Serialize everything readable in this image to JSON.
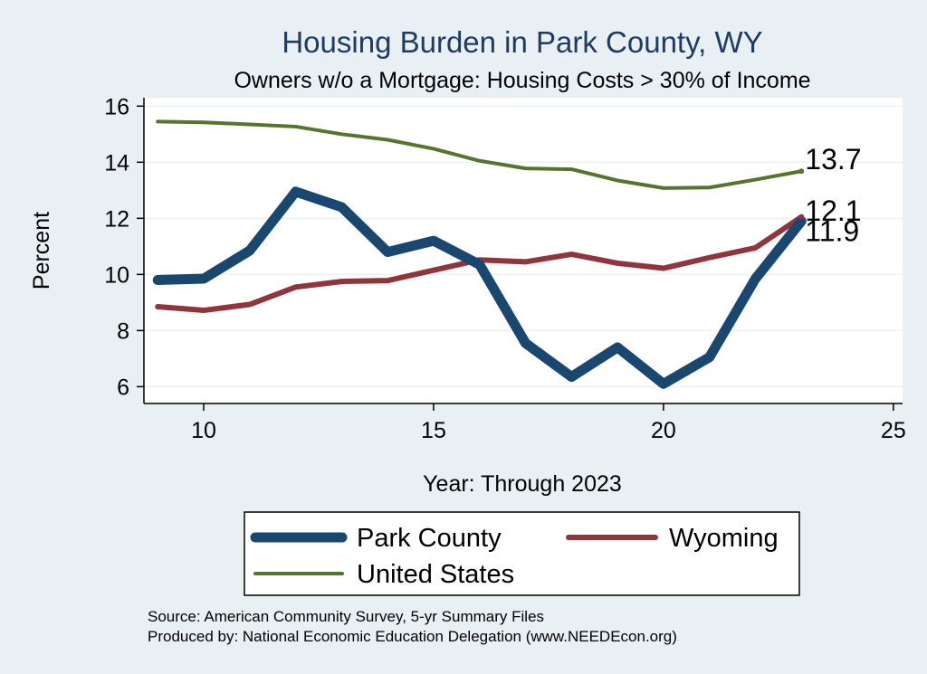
{
  "chart_data": {
    "type": "line",
    "title": "Housing Burden in Park County, WY",
    "subtitle": "Owners w/o a Mortgage: Housing Costs > 30% of Income",
    "xlabel": "Year: Through 2023",
    "ylabel": "Percent",
    "xlim": [
      8.7,
      25.2
    ],
    "ylim": [
      5.4,
      16.3
    ],
    "xticks": [
      10,
      15,
      20,
      25
    ],
    "yticks": [
      6,
      8,
      10,
      12,
      14,
      16
    ],
    "grid": true,
    "x": [
      9,
      10,
      11,
      12,
      13,
      14,
      15,
      16,
      17,
      18,
      19,
      20,
      21,
      22,
      23
    ],
    "series": [
      {
        "name": "Park County",
        "color": "#1a476f",
        "values": [
          9.8,
          9.85,
          10.85,
          12.95,
          12.4,
          10.8,
          11.2,
          10.35,
          7.55,
          6.35,
          7.4,
          6.1,
          7.05,
          9.85,
          11.9
        ],
        "end_label": "11.9"
      },
      {
        "name": "Wyoming",
        "color": "#90353b",
        "values": [
          8.85,
          8.72,
          8.93,
          9.55,
          9.75,
          9.78,
          10.15,
          10.52,
          10.45,
          10.72,
          10.4,
          10.22,
          10.6,
          10.95,
          12.05
        ],
        "end_label": "12.1"
      },
      {
        "name": "United States",
        "color": "#55752f",
        "values": [
          15.45,
          15.42,
          15.35,
          15.27,
          15.0,
          14.8,
          14.48,
          14.05,
          13.78,
          13.75,
          13.35,
          13.08,
          13.1,
          13.38,
          13.68
        ],
        "end_label": "13.7"
      }
    ],
    "legend": {
      "position": "bottom",
      "items": [
        {
          "label": "Park County",
          "color": "#1a476f"
        },
        {
          "label": "Wyoming",
          "color": "#90353b"
        },
        {
          "label": "United States",
          "color": "#55752f"
        }
      ]
    },
    "note": [
      "Source: American Community Survey, 5-yr Summary Files",
      "Produced by: National Economic Education Delegation (www.NEEDEcon.org)"
    ]
  }
}
